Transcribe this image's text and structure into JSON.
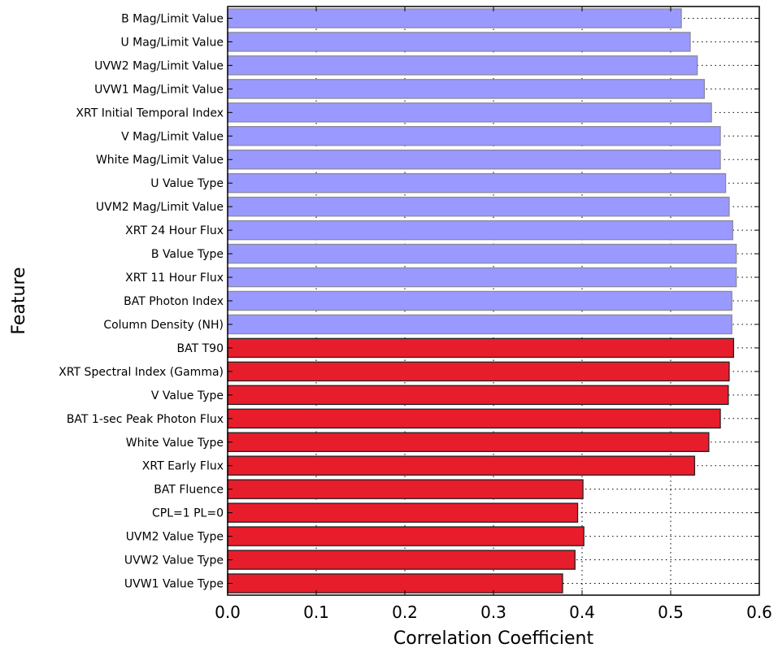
{
  "chart_data": {
    "type": "bar",
    "orientation": "horizontal",
    "title": "",
    "xlabel": "Correlation Coefficient",
    "ylabel": "Feature",
    "xlim": [
      0.0,
      0.6
    ],
    "xticks": [
      "0.0",
      "0.1",
      "0.2",
      "0.3",
      "0.4",
      "0.5",
      "0.6"
    ],
    "grid": "dotted",
    "colors": {
      "blue": "#9999ff",
      "red": "#e81d2c",
      "blue_edge": "#8a8a9a",
      "red_edge": "#222222"
    },
    "categories": [
      "B Mag/Limit Value",
      "U Mag/Limit Value",
      "UVW2 Mag/Limit Value",
      "UVW1 Mag/Limit Value",
      "XRT Initial Temporal Index",
      "V Mag/Limit Value",
      "White Mag/Limit Value",
      "U Value Type",
      "UVM2 Mag/Limit Value",
      "XRT 24 Hour Flux",
      "B Value Type",
      "XRT 11 Hour Flux",
      "BAT Photon Index",
      "Column Density (NH)",
      "BAT T90",
      "XRT Spectral Index (Gamma)",
      "V Value Type",
      "BAT 1-sec Peak Photon Flux",
      "White Value Type",
      "XRT Early Flux",
      "BAT Fluence",
      "CPL=1 PL=0",
      "UVM2 Value Type",
      "UVW2 Value Type",
      "UVW1 Value Type"
    ],
    "values": [
      0.512,
      0.522,
      0.53,
      0.538,
      0.546,
      0.556,
      0.556,
      0.562,
      0.566,
      0.57,
      0.574,
      0.574,
      0.569,
      0.569,
      0.571,
      0.566,
      0.565,
      0.556,
      0.543,
      0.527,
      0.401,
      0.395,
      0.402,
      0.392,
      0.378
    ],
    "bar_colors": [
      "blue",
      "blue",
      "blue",
      "blue",
      "blue",
      "blue",
      "blue",
      "blue",
      "blue",
      "blue",
      "blue",
      "blue",
      "blue",
      "blue",
      "red",
      "red",
      "red",
      "red",
      "red",
      "red",
      "red",
      "red",
      "red",
      "red",
      "red"
    ]
  }
}
